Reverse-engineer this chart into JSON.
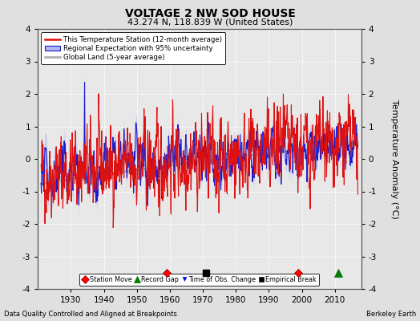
{
  "title": "VOLTAGE 2 NW SOD HOUSE",
  "subtitle": "43.274 N, 118.839 W (United States)",
  "ylabel": "Temperature Anomaly (°C)",
  "xlabel_note": "Data Quality Controlled and Aligned at Breakpoints",
  "source_note": "Berkeley Earth",
  "ylim": [
    -4,
    4
  ],
  "xlim": [
    1920,
    2018
  ],
  "yticks": [
    -4,
    -3,
    -2,
    -1,
    0,
    1,
    2,
    3,
    4
  ],
  "xticks": [
    1930,
    1940,
    1950,
    1960,
    1970,
    1980,
    1990,
    2000,
    2010
  ],
  "bg_color": "#e0e0e0",
  "plot_bg_color": "#e8e8e8",
  "grid_color": "#ffffff",
  "red_color": "#dd1111",
  "blue_color": "#1a1acc",
  "blue_fill_color": "#b0b8ee",
  "gray_color": "#b0b0b0",
  "station_move_years": [
    1959,
    1999
  ],
  "record_gap_years": [
    2011
  ],
  "time_obs_years": [],
  "empirical_break_years": [
    1971
  ],
  "marker_y": -3.5,
  "legend_labels": [
    "This Temperature Station (12-month average)",
    "Regional Expectation with 95% uncertainty",
    "Global Land (5-year average)"
  ],
  "bottom_legend_labels": [
    "Station Move",
    "Record Gap",
    "Time of Obs. Change",
    "Empirical Break"
  ]
}
